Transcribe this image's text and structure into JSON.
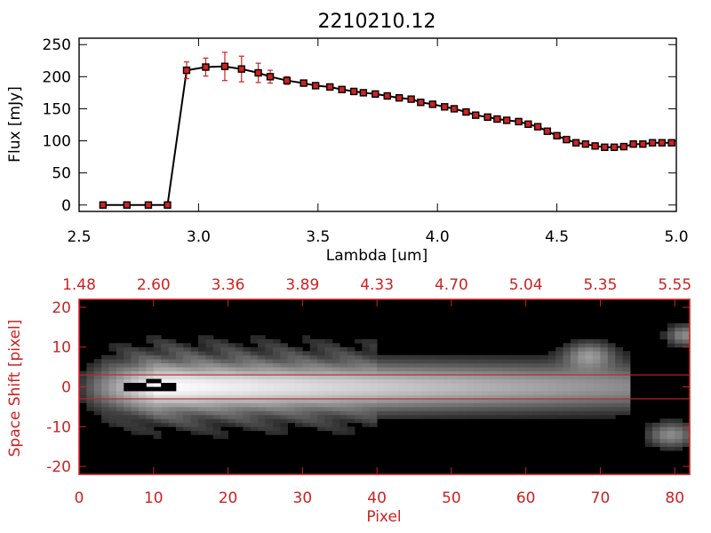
{
  "chart_data": [
    {
      "type": "line",
      "title": "2210210.12",
      "xlabel": "Lambda [um]",
      "ylabel": "Flux [mJy]",
      "xlim": [
        2.5,
        5.0
      ],
      "ylim": [
        -10,
        260
      ],
      "xticks": [
        "2.5",
        "3.0",
        "3.5",
        "4.0",
        "4.5",
        "5.0"
      ],
      "yticks": [
        "0",
        "50",
        "100",
        "150",
        "200",
        "250"
      ],
      "marker_color": "#cc2222",
      "line_color": "#000000",
      "errorbar_color": "#cc2222",
      "series": [
        {
          "x": [
            2.6,
            2.7,
            2.79,
            2.87,
            2.95,
            3.03,
            3.11,
            3.18,
            3.25,
            3.3,
            3.37,
            3.44,
            3.49,
            3.55,
            3.6,
            3.65,
            3.69,
            3.74,
            3.79,
            3.84,
            3.89,
            3.93,
            3.98,
            4.03,
            4.07,
            4.12,
            4.16,
            4.21,
            4.25,
            4.29,
            4.34,
            4.38,
            4.42,
            4.46,
            4.5,
            4.54,
            4.58,
            4.62,
            4.66,
            4.7,
            4.74,
            4.78,
            4.82,
            4.86,
            4.9,
            4.94,
            4.98
          ],
          "y": [
            0,
            0,
            0,
            0,
            210,
            215,
            216,
            212,
            206,
            200,
            194,
            190,
            186,
            184,
            180,
            177,
            175,
            173,
            170,
            167,
            165,
            160,
            157,
            153,
            150,
            145,
            140,
            137,
            134,
            132,
            130,
            126,
            122,
            115,
            108,
            102,
            97,
            95,
            92,
            90,
            90,
            91,
            95,
            95,
            97,
            97,
            97
          ],
          "yerr": [
            0,
            0,
            0,
            0,
            13,
            14,
            22,
            20,
            15,
            10,
            6,
            3,
            3,
            3,
            3,
            3,
            3,
            3,
            3,
            3,
            3,
            3,
            3,
            3,
            3,
            3,
            3,
            3,
            3,
            3,
            3,
            3,
            3,
            3,
            3,
            3,
            3,
            3,
            3,
            3,
            3,
            3,
            3,
            3,
            3,
            3,
            3
          ]
        }
      ]
    },
    {
      "type": "heatmap",
      "xlabel": "Pixel",
      "ylabel": "Space Shift [pixel]",
      "xlim": [
        0,
        82
      ],
      "ylim": [
        -22,
        22
      ],
      "xticks": [
        "0",
        "10",
        "20",
        "30",
        "40",
        "50",
        "60",
        "70",
        "80"
      ],
      "yticks": [
        "-20",
        "-10",
        "0",
        "10",
        "20"
      ],
      "top_xticks": [
        "1.48",
        "2.60",
        "3.36",
        "3.89",
        "4.33",
        "4.70",
        "5.04",
        "5.35",
        "5.55"
      ],
      "extraction_lines_y": [
        3,
        -3
      ],
      "axis_color": "#cc2222",
      "colormap": "grayscale",
      "spatial_profile_sigma_px": 4
    }
  ]
}
